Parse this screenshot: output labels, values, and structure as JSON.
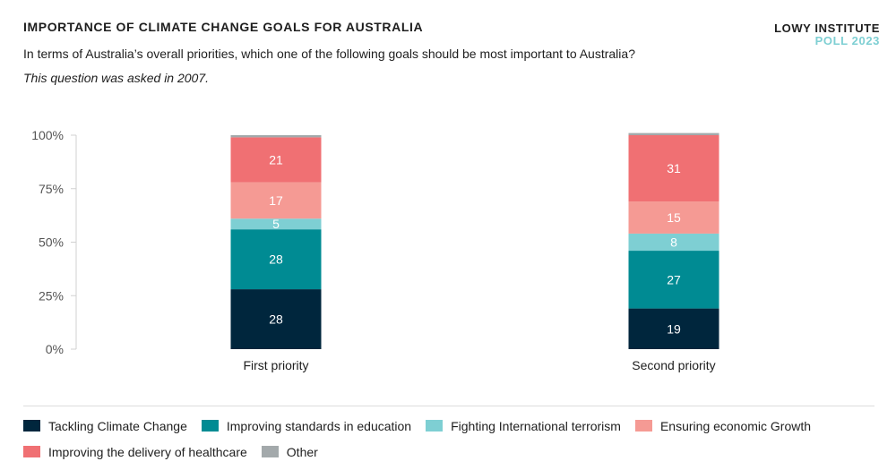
{
  "header": {
    "title": "IMPORTANCE OF CLIMATE CHANGE GOALS FOR AUSTRALIA",
    "subtitle": "In terms of Australia’s overall priorities, which one of the following goals should be most important to Australia?",
    "note": "This question was asked in 2007.",
    "brand_line1": "LOWY INSTITUTE",
    "brand_line2": "POLL 2023"
  },
  "chart_data": {
    "type": "bar",
    "stacked": true,
    "categories": [
      "First priority",
      "Second priority"
    ],
    "series": [
      {
        "name": "Tackling Climate Change",
        "color": "#00263d",
        "values": [
          28,
          19
        ]
      },
      {
        "name": "Improving standards in education",
        "color": "#008b93",
        "values": [
          28,
          27
        ]
      },
      {
        "name": "Fighting International terrorism",
        "color": "#7ecfd3",
        "values": [
          5,
          8
        ]
      },
      {
        "name": "Ensuring economic Growth",
        "color": "#f59a94",
        "values": [
          17,
          15
        ]
      },
      {
        "name": "Improving the delivery of healthcare",
        "color": "#f07073",
        "values": [
          21,
          31
        ]
      },
      {
        "name": "Other",
        "color": "#a3a9ab",
        "values": [
          1,
          1
        ]
      }
    ],
    "ylim": [
      0,
      100
    ],
    "yticks": [
      "0%",
      "25%",
      "50%",
      "75%",
      "100%"
    ],
    "ytick_values": [
      0,
      25,
      50,
      75,
      100
    ],
    "legend_position": "bottom",
    "grid": false
  }
}
